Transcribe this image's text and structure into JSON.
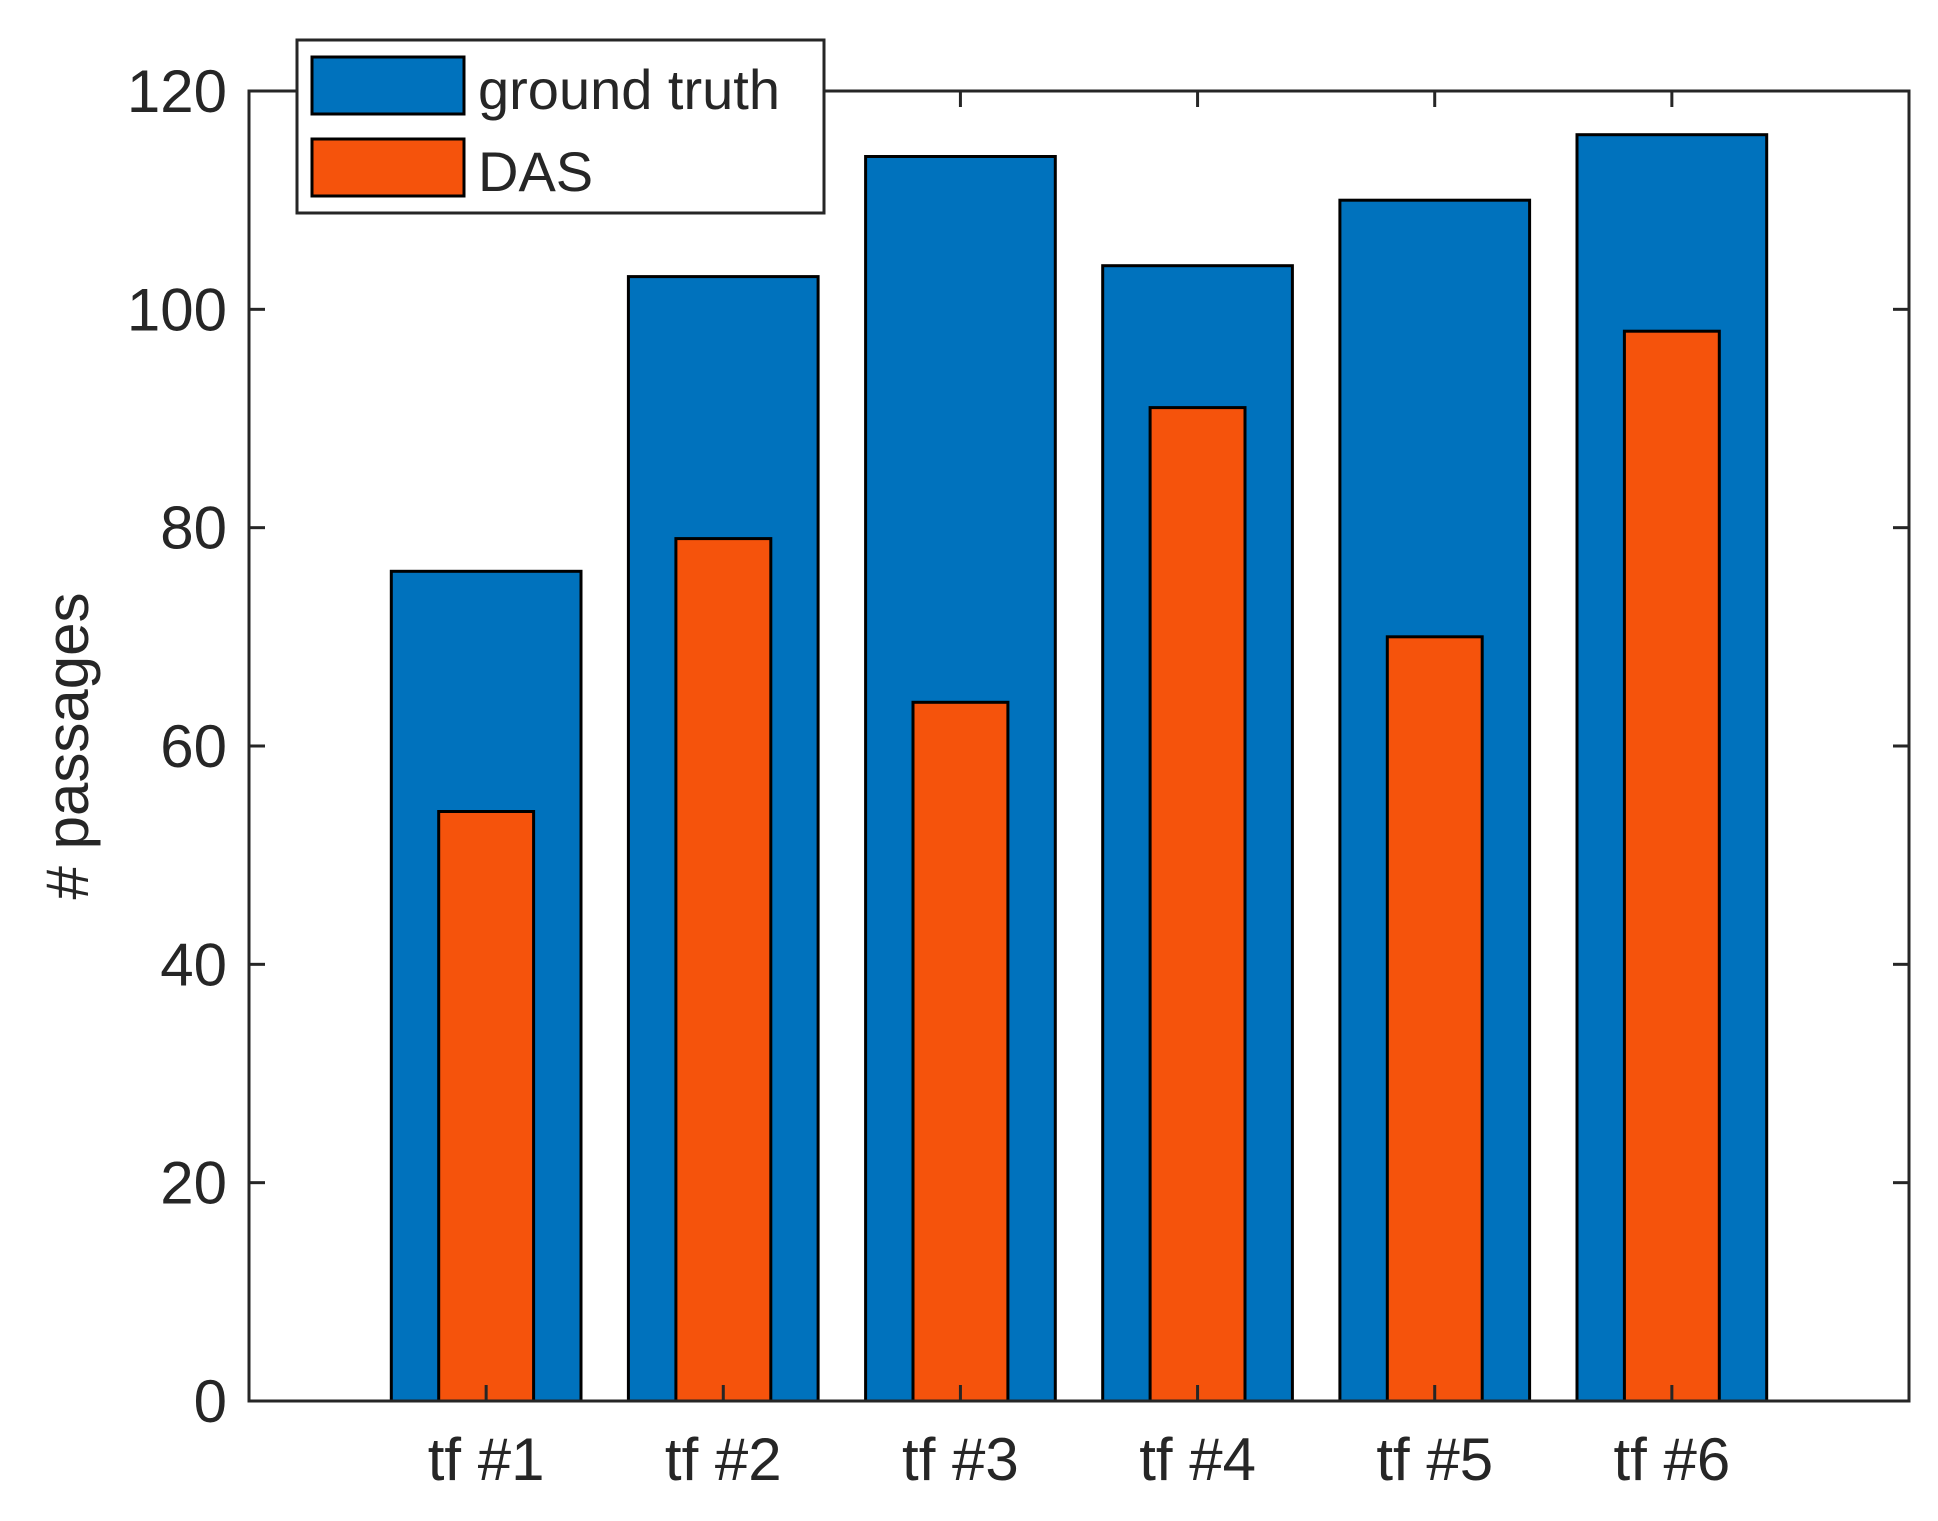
{
  "chart_data": {
    "type": "bar",
    "title": "",
    "xlabel": "",
    "ylabel": "# passages",
    "categories": [
      "tf #1",
      "tf #2",
      "tf #3",
      "tf #4",
      "tf #5",
      "tf #6"
    ],
    "series": [
      {
        "name": "ground truth",
        "values": [
          76,
          103,
          114,
          104,
          110,
          116
        ],
        "color": "#0072bd"
      },
      {
        "name": "DAS",
        "values": [
          54,
          79,
          64,
          91,
          70,
          98
        ],
        "color": "#f5530c"
      }
    ],
    "ylim": [
      0,
      120
    ],
    "yticks": [
      0,
      20,
      40,
      60,
      80,
      100,
      120
    ],
    "grid": false,
    "legend_position": "top-left",
    "overlapping_bars": true
  }
}
